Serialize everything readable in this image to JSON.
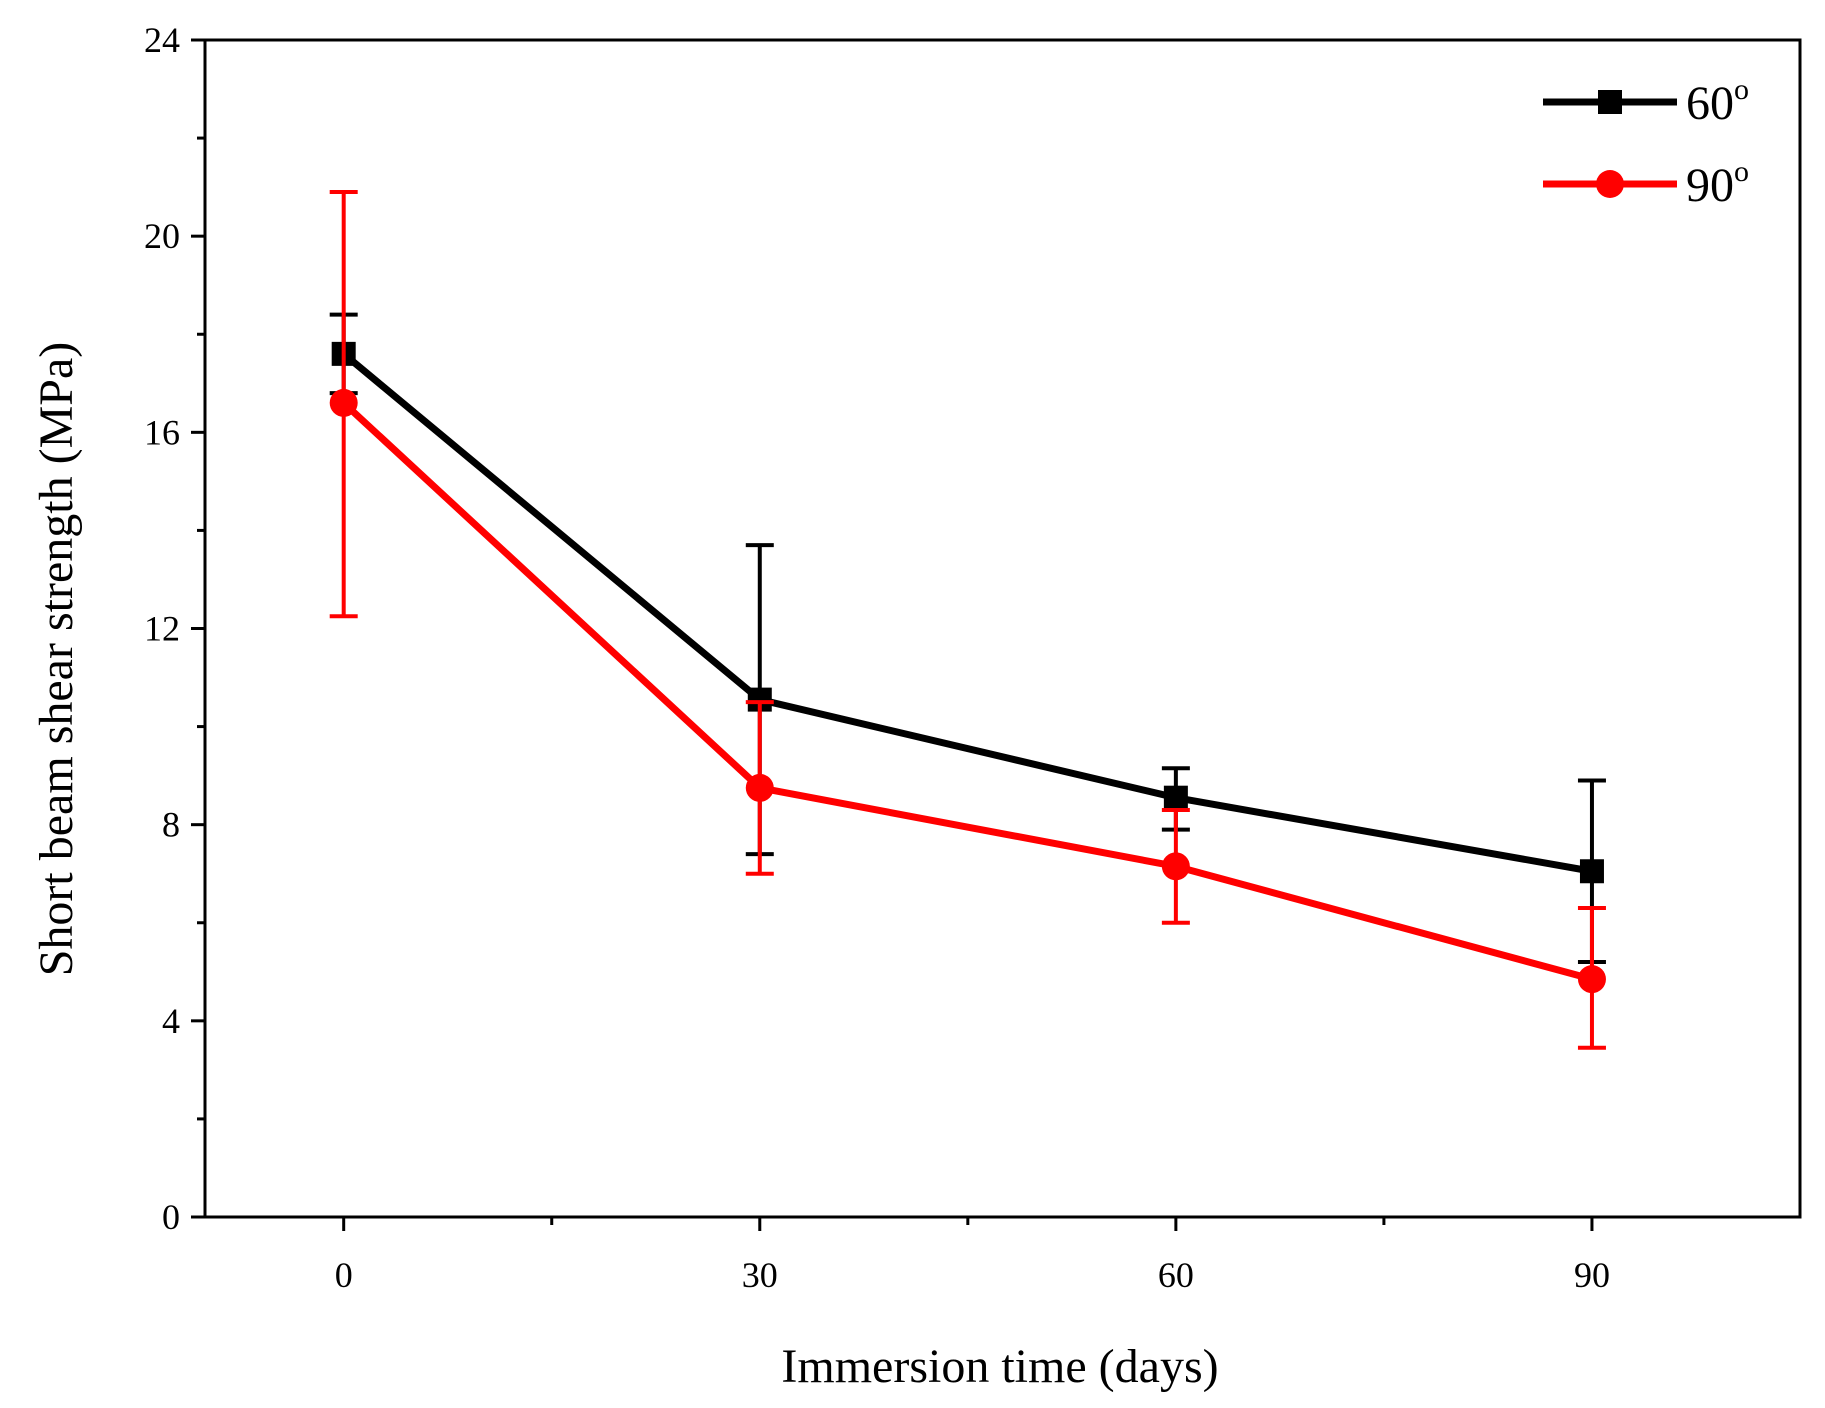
{
  "chart_data": {
    "type": "line",
    "title": "",
    "xlabel": "Immersion time (days)",
    "ylabel": "Short beam shear strength (MPa)",
    "xlim": [
      -10,
      105
    ],
    "ylim": [
      0,
      24
    ],
    "x_ticks": [
      0,
      30,
      60,
      90
    ],
    "x_tick_labels": [
      "0",
      "30",
      "60",
      "90"
    ],
    "x_minor_ticks": [
      15,
      45,
      75
    ],
    "y_ticks": [
      0,
      4,
      8,
      12,
      16,
      20,
      24
    ],
    "y_tick_labels": [
      "0",
      "4",
      "8",
      "12",
      "16",
      "20",
      "24"
    ],
    "y_minor_ticks": [
      2,
      6,
      10,
      14,
      18,
      22
    ],
    "grid": false,
    "legend_position": "top-right",
    "series": [
      {
        "name": "60",
        "name_superscript": "o",
        "color": "#000000",
        "marker": "square",
        "x": [
          0,
          30,
          60,
          90
        ],
        "y": [
          17.6,
          10.55,
          8.55,
          7.05
        ],
        "error_upper": [
          18.4,
          13.7,
          9.15,
          8.9
        ],
        "error_lower": [
          16.8,
          7.4,
          7.9,
          5.2
        ]
      },
      {
        "name": "90",
        "name_superscript": "o",
        "color": "#ff0000",
        "marker": "circle",
        "x": [
          0,
          30,
          60,
          90
        ],
        "y": [
          16.6,
          8.75,
          7.15,
          4.85
        ],
        "error_upper": [
          20.9,
          10.5,
          8.3,
          6.3
        ],
        "error_lower": [
          12.25,
          7.0,
          6.0,
          3.45
        ]
      }
    ]
  }
}
